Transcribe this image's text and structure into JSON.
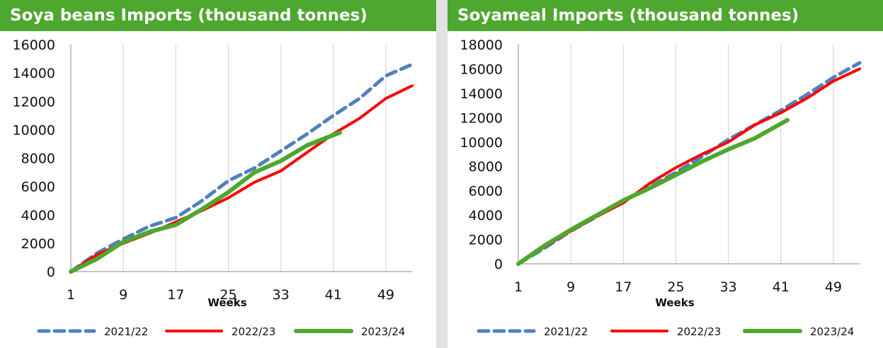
{
  "chart_data": [
    {
      "type": "line",
      "title": "Soya beans Imports (thousand tonnes)",
      "xlabel": "Weeks",
      "ylabel": "",
      "xlim": [
        1,
        53
      ],
      "ylim": [
        0,
        16000
      ],
      "x_ticks": [
        "1",
        "9",
        "17",
        "25",
        "33",
        "41",
        "49"
      ],
      "y_ticks": [
        "0",
        "2000",
        "4000",
        "6000",
        "8000",
        "10000",
        "12000",
        "14000",
        "16000"
      ],
      "grid": "vertical",
      "legend": "bottom",
      "series": [
        {
          "name": "2021/22",
          "color": "#4f81bd",
          "dash": true,
          "x": [
            1,
            5,
            9,
            13,
            17,
            21,
            25,
            29,
            33,
            37,
            41,
            45,
            49,
            53
          ],
          "y": [
            0,
            1300,
            2300,
            3200,
            3800,
            5000,
            6400,
            7300,
            8500,
            9700,
            11000,
            12200,
            13800,
            14600
          ]
        },
        {
          "name": "2022/23",
          "color": "#ff0000",
          "dash": false,
          "x": [
            1,
            5,
            9,
            13,
            17,
            21,
            25,
            29,
            33,
            37,
            41,
            45,
            49,
            53
          ],
          "y": [
            0,
            1200,
            2000,
            2700,
            3500,
            4300,
            5200,
            6300,
            7100,
            8400,
            9700,
            10800,
            12200,
            13100
          ]
        },
        {
          "name": "2023/24",
          "color": "#4ea72e",
          "dash": false,
          "x": [
            1,
            5,
            9,
            13,
            17,
            21,
            25,
            29,
            33,
            37,
            42
          ],
          "y": [
            0,
            900,
            2100,
            2800,
            3300,
            4400,
            5600,
            7000,
            7800,
            8900,
            9800
          ]
        }
      ]
    },
    {
      "type": "line",
      "title": "Soyameal Imports (thousand tonnes)",
      "xlabel": "Weeks",
      "ylabel": "",
      "xlim": [
        1,
        53
      ],
      "ylim": [
        0,
        18000
      ],
      "x_ticks": [
        "1",
        "9",
        "17",
        "25",
        "33",
        "41",
        "49"
      ],
      "y_ticks": [
        "0",
        "2000",
        "4000",
        "6000",
        "8000",
        "10000",
        "12000",
        "14000",
        "16000",
        "18000"
      ],
      "grid": "vertical",
      "legend": "bottom",
      "series": [
        {
          "name": "2021/22",
          "color": "#4f81bd",
          "dash": true,
          "x": [
            1,
            5,
            9,
            13,
            17,
            21,
            25,
            29,
            33,
            37,
            41,
            45,
            49,
            53
          ],
          "y": [
            0,
            1300,
            2700,
            3900,
            5200,
            6300,
            7500,
            8800,
            10200,
            11400,
            12600,
            13900,
            15300,
            16500
          ]
        },
        {
          "name": "2022/23",
          "color": "#ff0000",
          "dash": false,
          "x": [
            1,
            5,
            9,
            13,
            17,
            21,
            25,
            29,
            33,
            37,
            41,
            45,
            49,
            53
          ],
          "y": [
            0,
            1400,
            2700,
            3900,
            5000,
            6600,
            7900,
            9000,
            10000,
            11400,
            12400,
            13600,
            15000,
            16000
          ]
        },
        {
          "name": "2023/24",
          "color": "#4ea72e",
          "dash": false,
          "x": [
            1,
            5,
            9,
            13,
            17,
            21,
            25,
            29,
            33,
            37,
            42
          ],
          "y": [
            0,
            1500,
            2800,
            4000,
            5200,
            6200,
            7300,
            8400,
            9400,
            10300,
            11800
          ]
        }
      ]
    }
  ]
}
